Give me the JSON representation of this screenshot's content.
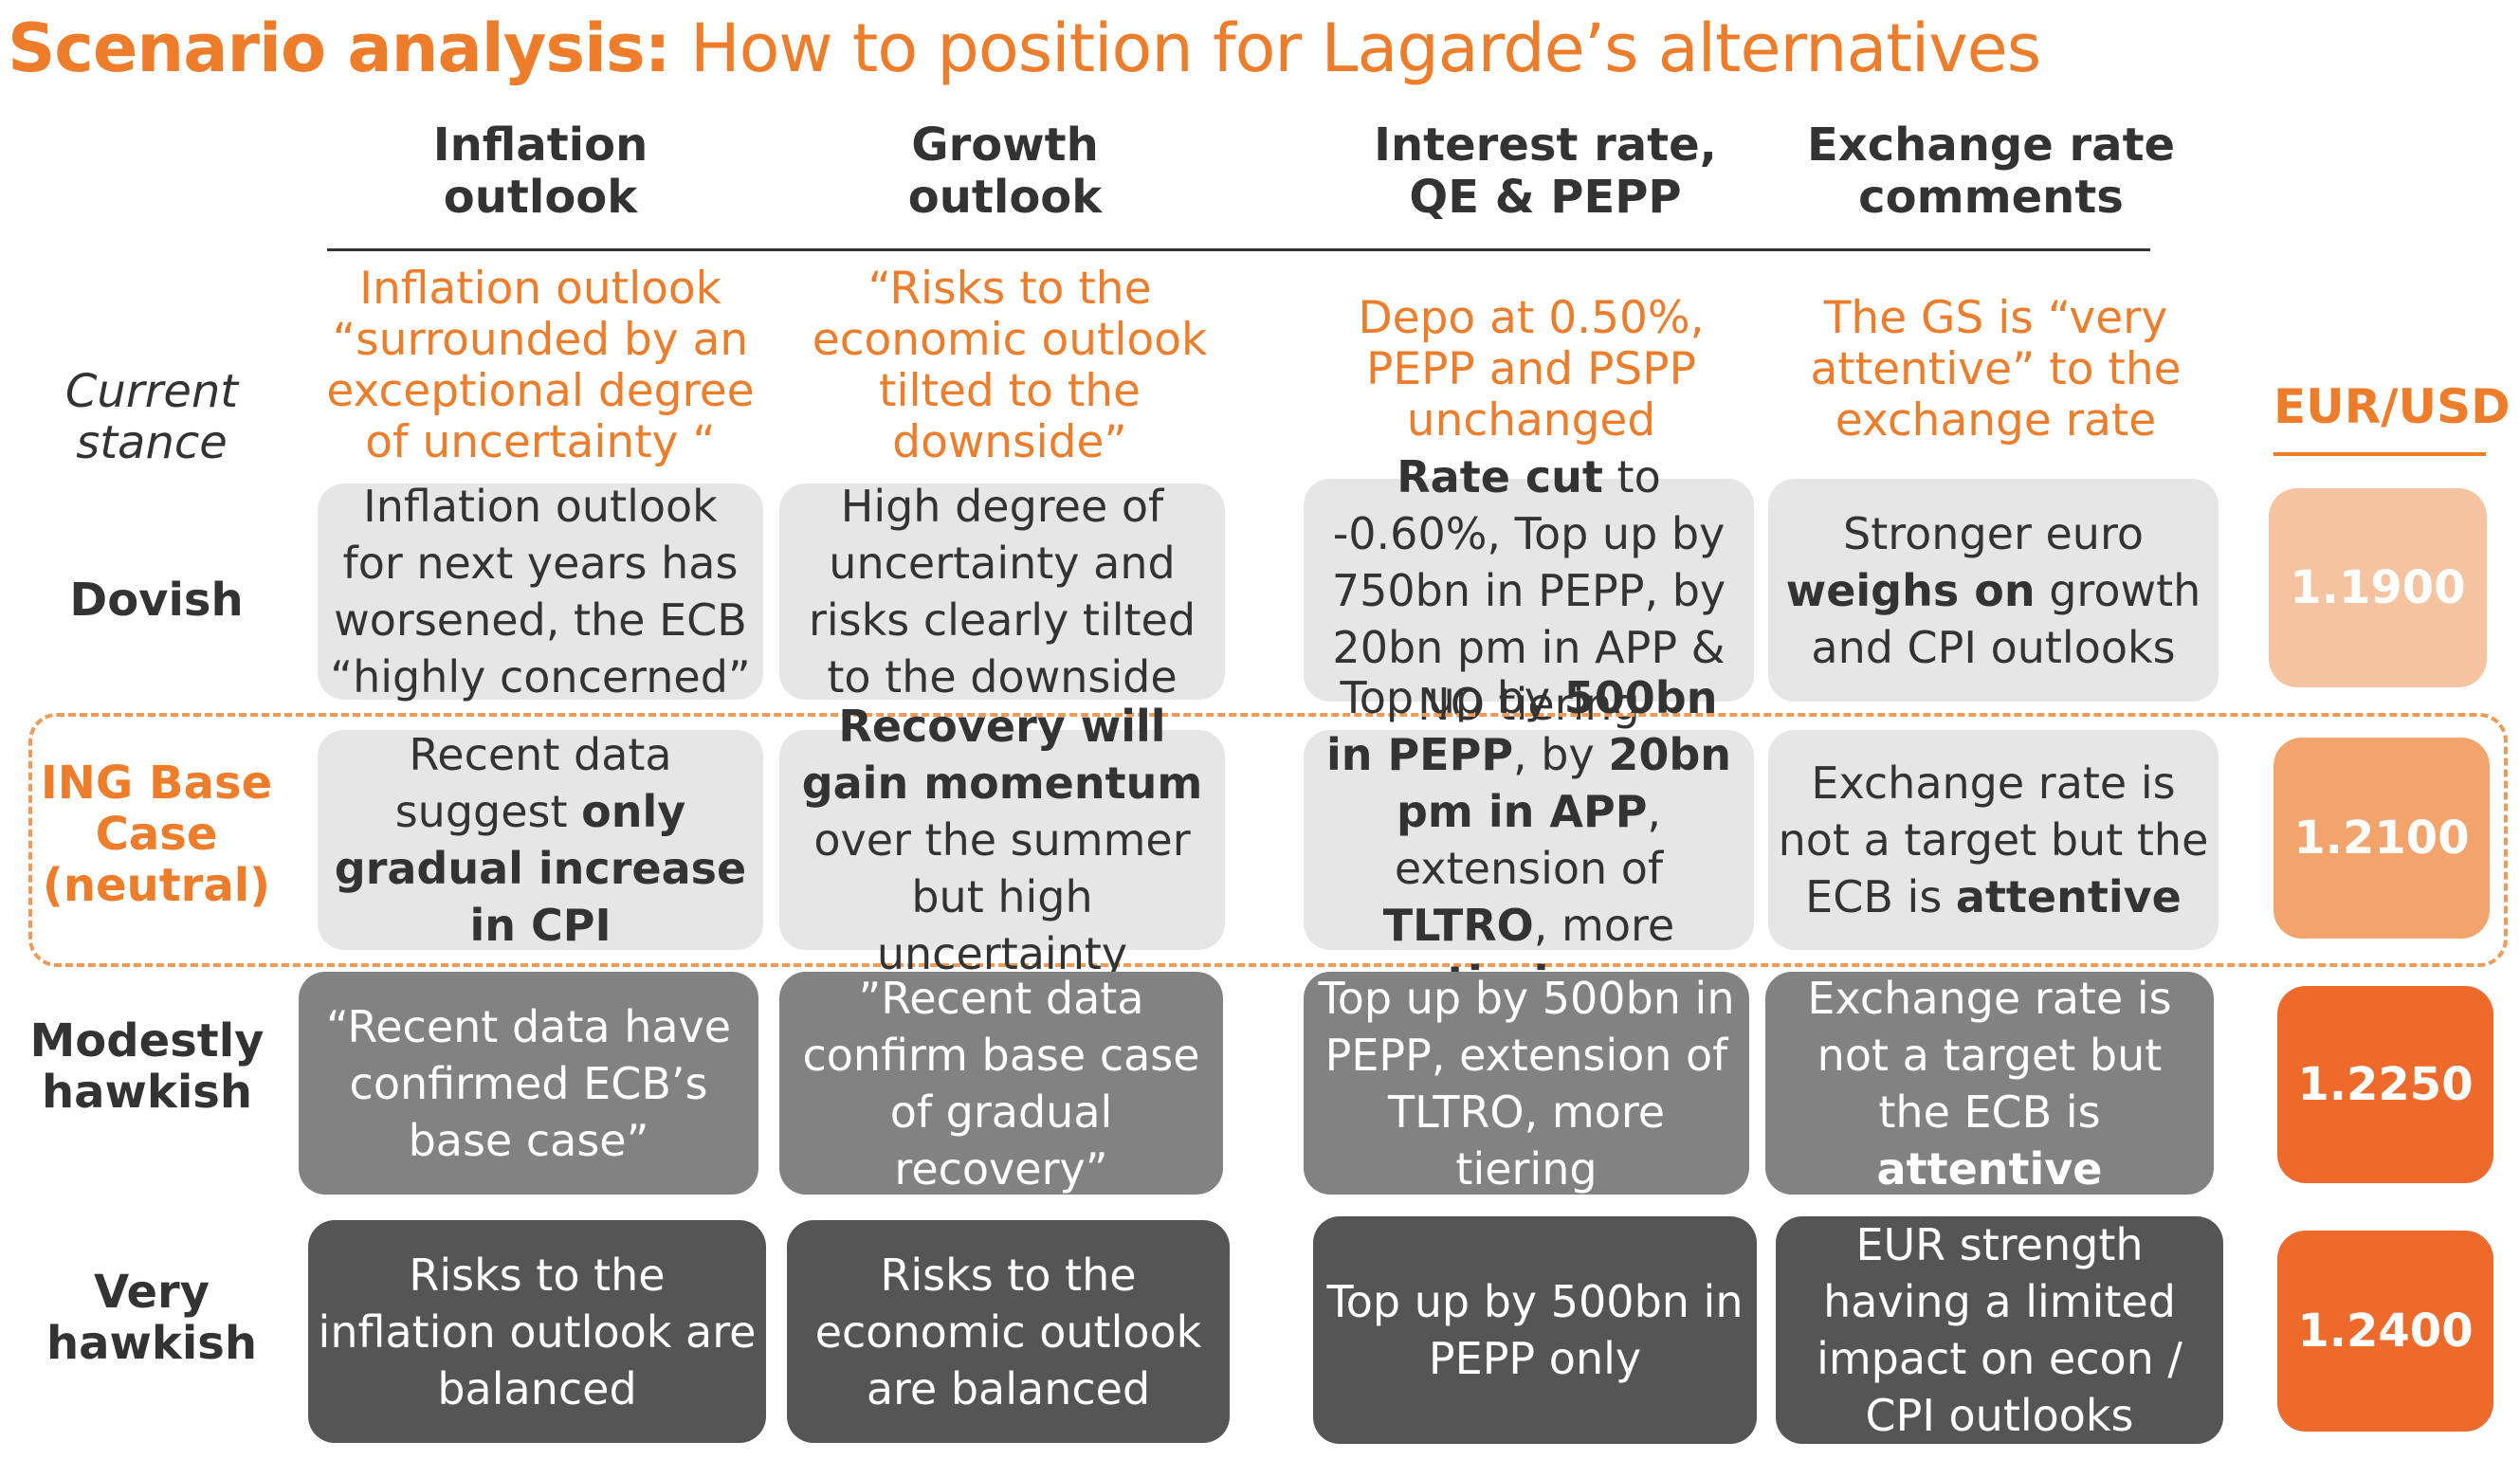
{
  "title": {
    "bold": "Scenario analysis:",
    "rest": " How to position for Lagarde’s alternatives"
  },
  "columns": [
    {
      "line1": "Inflation",
      "line2": "outlook"
    },
    {
      "line1": "Growth",
      "line2": "outlook"
    },
    {
      "line1": "Interest rate,",
      "line2": "QE & PEPP"
    },
    {
      "line1": "Exchange rate",
      "line2": "comments"
    }
  ],
  "fx_header": "EUR/USD",
  "current": {
    "label": "Current stance",
    "inflation": "Inflation outlook “surrounded by an exceptional degree of uncertainty “",
    "growth": "“Risks to the economic outlook tilted to the downside”",
    "rates": "Depo at 0.50%, PEPP and PSPP unchanged",
    "fx": "The GS is “very attentive” to the exchange rate"
  },
  "rows": {
    "dovish": {
      "label": "Dovish",
      "inflation": "Inflation outlook for next years has worsened, the ECB “highly concerned”",
      "growth": "High degree of uncertainty and risks clearly tilted to the downside",
      "rates_b1": "Rate cut",
      "rates_t1": " to -0.60%, Top up by 750bn in PEPP, by 20bn pm in APP & NO tiering",
      "fx_t1": "Stronger euro ",
      "fx_b1": "weighs on",
      "fx_t2": " growth and CPI outlooks",
      "eurusd": "1.1900"
    },
    "base": {
      "label": "ING Base Case (neutral)",
      "inflation_t1": "Recent data suggest ",
      "inflation_b1": "only gradual increase in CPI",
      "growth_b1": "Recovery will gain momentum",
      "growth_t1": " over the summer but high uncertainty",
      "rates_t1": "Top up by ",
      "rates_b1": "500bn in PEPP",
      "rates_t2": ", by ",
      "rates_b2": "20bn pm in APP",
      "rates_t3": ", extension of ",
      "rates_b3": "TLTRO",
      "rates_t4": ", more ",
      "rates_b4": "tiering",
      "fx_t1": "Exchange rate is not a target but the ECB is ",
      "fx_b1": "attentive",
      "eurusd": "1.2100"
    },
    "modest": {
      "label": "Modestly hawkish",
      "inflation": "“Recent data have confirmed ECB’s base case”",
      "growth": "”Recent data confirm base case of gradual recovery”",
      "rates": "Top up by 500bn in PEPP, extension of TLTRO, more tiering",
      "fx_t1": "Exchange rate is not a target but the ECB is ",
      "fx_b1": "attentive",
      "eurusd": "1.2250"
    },
    "very": {
      "label": "Very hawkish",
      "inflation": "Risks to the inflation outlook are balanced",
      "growth": "Risks to the economic outlook are balanced",
      "rates": "Top up by 500bn in PEPP only",
      "fx": "EUR strength having a limited impact on econ / CPI outlooks",
      "eurusd": "1.2400"
    }
  },
  "colors": {
    "accent": "#ee7d2b",
    "fx_dovish": "#f6c3a0",
    "fx_base": "#f3a46c",
    "fx_modest": "#ee6a2b",
    "fx_very": "#ee6a2b",
    "cell_light": "#e6e6e6",
    "cell_mid": "#828282",
    "cell_dark": "#555555"
  }
}
